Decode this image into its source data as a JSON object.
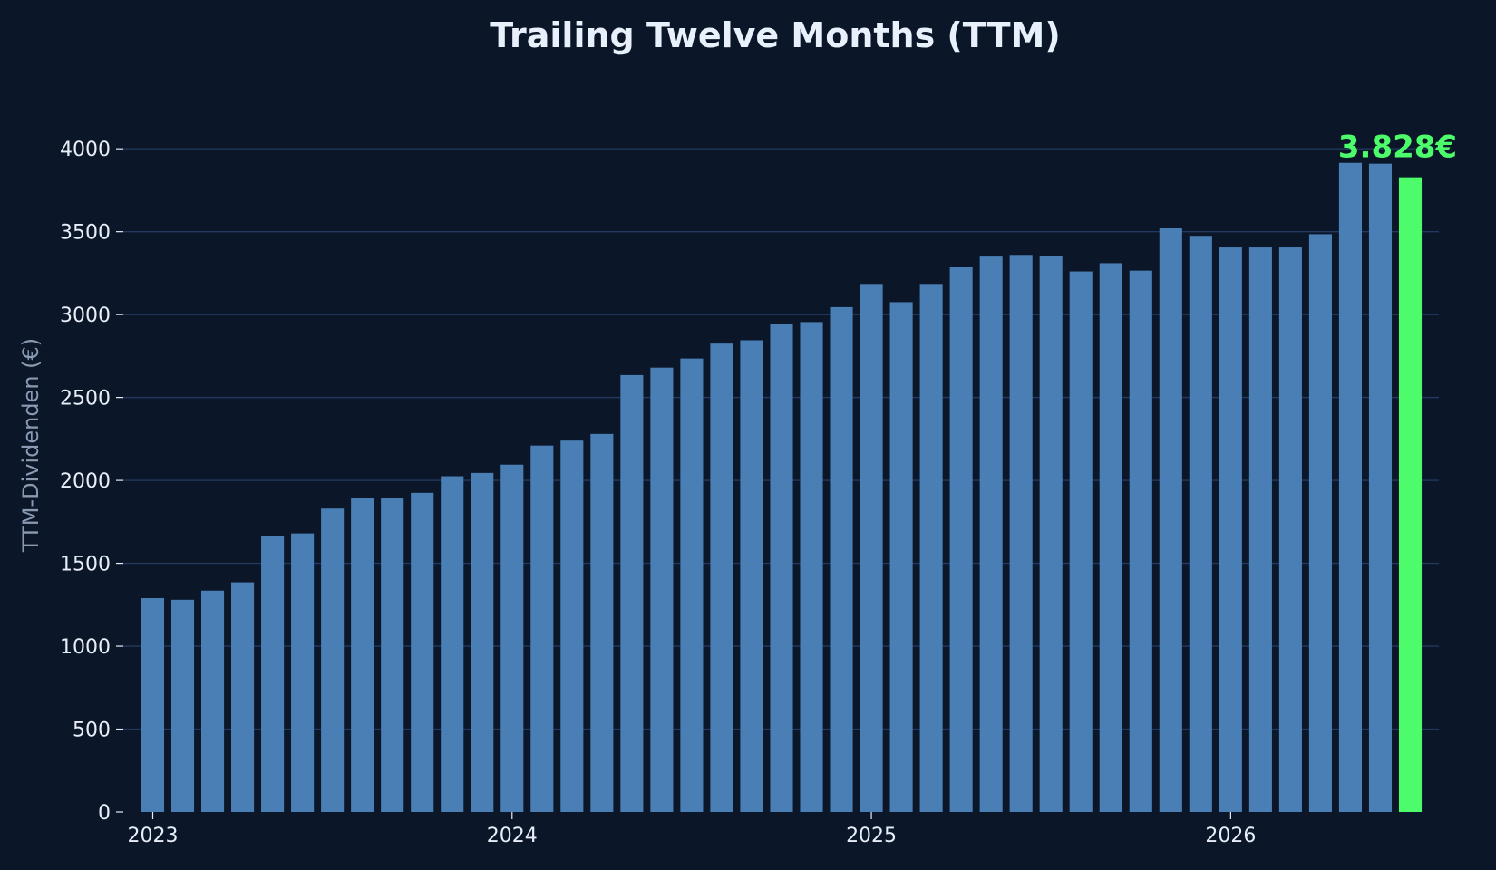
{
  "chart_data": {
    "type": "bar",
    "title": "Trailing Twelve Months (TTM)",
    "xlabel": "",
    "ylabel": "TTM-Dividenden (€)",
    "ylim": [
      0,
      4400
    ],
    "yticks": [
      0,
      500,
      1000,
      1500,
      2000,
      2500,
      3000,
      3500,
      4000
    ],
    "xticks": [
      {
        "label": "2023",
        "date": "2023-01"
      },
      {
        "label": "2024",
        "date": "2024-01"
      },
      {
        "label": "2025",
        "date": "2025-01"
      },
      {
        "label": "2026",
        "date": "2026-01"
      }
    ],
    "grid": "horizontal",
    "categories": [
      "2023-01",
      "2023-02",
      "2023-03",
      "2023-04",
      "2023-05",
      "2023-06",
      "2023-07",
      "2023-08",
      "2023-09",
      "2023-10",
      "2023-11",
      "2023-12",
      "2024-01",
      "2024-02",
      "2024-03",
      "2024-04",
      "2024-05",
      "2024-06",
      "2024-07",
      "2024-08",
      "2024-09",
      "2024-10",
      "2024-11",
      "2024-12",
      "2025-01",
      "2025-02",
      "2025-03",
      "2025-04",
      "2025-05",
      "2025-06",
      "2025-07",
      "2025-08",
      "2025-09",
      "2025-10",
      "2025-11",
      "2025-12",
      "2026-01",
      "2026-02",
      "2026-03",
      "2026-04",
      "2026-05",
      "2026-06",
      "2026-07"
    ],
    "values": [
      1290,
      1280,
      1335,
      1385,
      1665,
      1680,
      1830,
      1895,
      1895,
      1925,
      2025,
      2045,
      2095,
      2210,
      2240,
      2280,
      2635,
      2680,
      2735,
      2825,
      2845,
      2945,
      2955,
      3045,
      3185,
      3075,
      3185,
      3285,
      3350,
      3360,
      3355,
      3260,
      3310,
      3265,
      3520,
      3475,
      3405,
      3405,
      3405,
      3485,
      3915,
      3910,
      3828
    ],
    "highlight": {
      "index": 42,
      "label": "3.828€"
    },
    "colors": {
      "bar": "#4a7fb5",
      "highlight": "#4cfc6a",
      "grid": "#22385c",
      "background": "#0b1628",
      "title": "#e8f0fc",
      "ticks": "#e8eef8",
      "ylabel": "#8b9ab3"
    }
  }
}
